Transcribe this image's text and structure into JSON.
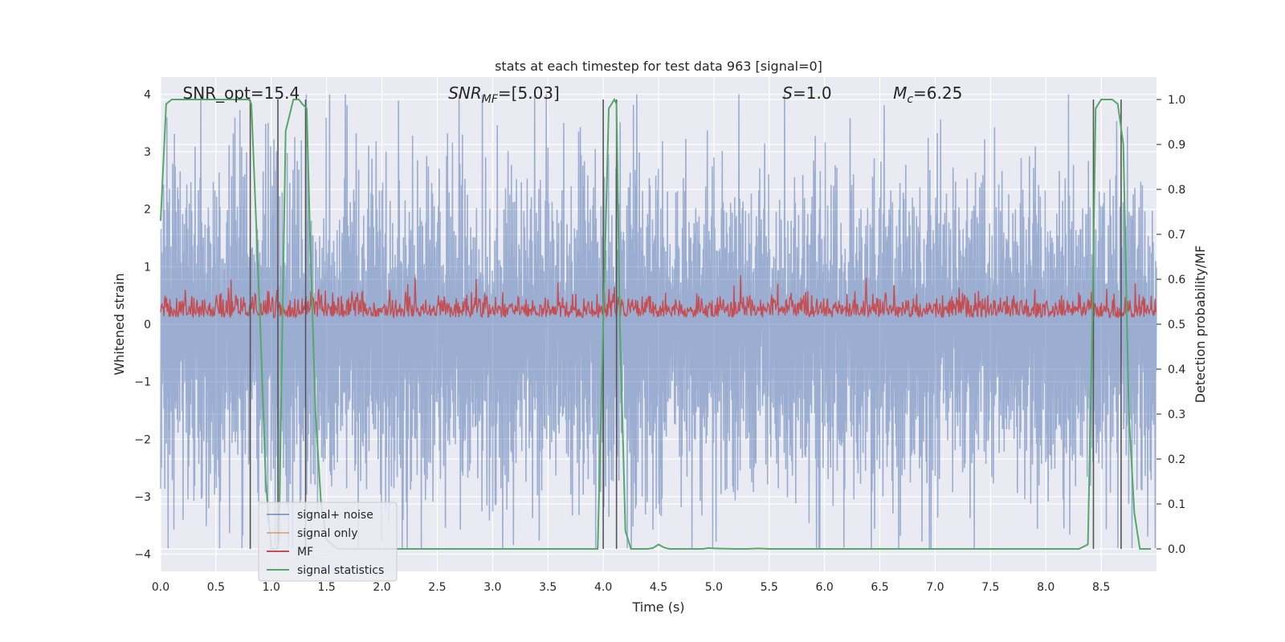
{
  "chart_data": {
    "type": "line",
    "title": "stats at each timestep for test data 963 [signal=0]",
    "xlabel": "Time (s)",
    "ylabel": "Whitened strain",
    "y2label": "Detection probability/MF",
    "xlim": [
      0.0,
      9.0
    ],
    "ylim": [
      -4.3,
      4.3
    ],
    "y2lim": [
      -0.05,
      1.05
    ],
    "x_ticks": [
      0.0,
      0.5,
      1.0,
      1.5,
      2.0,
      2.5,
      3.0,
      3.5,
      4.0,
      4.5,
      5.0,
      5.5,
      6.0,
      6.5,
      7.0,
      7.5,
      8.0,
      8.5
    ],
    "x_tick_labels": [
      "0.0",
      "0.5",
      "1.0",
      "1.5",
      "2.0",
      "2.5",
      "3.0",
      "3.5",
      "4.0",
      "4.5",
      "5.0",
      "5.5",
      "6.0",
      "6.5",
      "7.0",
      "7.5",
      "8.0",
      "8.5"
    ],
    "y_ticks": [
      4,
      3,
      2,
      1,
      0,
      -1,
      -2,
      -3,
      -4
    ],
    "y_tick_labels": [
      "4",
      "3",
      "2",
      "1",
      "0",
      "−1",
      "−2",
      "−3",
      "−4"
    ],
    "y2_ticks": [
      1.0,
      0.9,
      0.8,
      0.7,
      0.6,
      0.5,
      0.4,
      0.3,
      0.2,
      0.1,
      0.0
    ],
    "y2_tick_labels": [
      "1.0",
      "0.9",
      "0.8",
      "0.7",
      "0.6",
      "0.5",
      "0.4",
      "0.3",
      "0.2",
      "0.1",
      "0.0"
    ],
    "grid": true,
    "legend_placement": "lower-left",
    "colors": {
      "plot_bg": "#eaeaf2",
      "grid": "#ffffff",
      "noise": "#4c72b0",
      "signal_only": "#dd8452",
      "mf": "#c44e52",
      "stats": "#55a868",
      "vlines": "#555555"
    },
    "series": [
      {
        "name": "signal+ noise",
        "noise_amplitude": 1.0,
        "range": [
          -4.0,
          4.0
        ]
      },
      {
        "name": "signal only",
        "values": []
      },
      {
        "name": "MF",
        "baseline": 0.25,
        "range": [
          0.0,
          1.0
        ]
      },
      {
        "name": "signal statistics",
        "axis": "right",
        "x": [
          0.0,
          0.05,
          0.1,
          0.2,
          0.3,
          0.4,
          0.5,
          0.6,
          0.7,
          0.8,
          0.82,
          0.9,
          0.95,
          1.0,
          1.05,
          1.07,
          1.1,
          1.13,
          1.2,
          1.25,
          1.28,
          1.32,
          1.35,
          1.4,
          1.45,
          1.5,
          1.6,
          2.0,
          3.0,
          3.5,
          3.9,
          3.95,
          4.0,
          4.05,
          4.1,
          4.12,
          4.15,
          4.2,
          4.25,
          4.3,
          4.4,
          4.45,
          4.5,
          4.55,
          4.6,
          4.8,
          4.9,
          4.95,
          5.0,
          5.2,
          5.3,
          5.4,
          5.5,
          6.0,
          7.0,
          8.0,
          8.3,
          8.38,
          8.42,
          8.45,
          8.5,
          8.6,
          8.65,
          8.7,
          8.75,
          8.8,
          8.85,
          8.95
        ],
        "values": [
          0.73,
          0.99,
          1.0,
          1.0,
          1.0,
          1.0,
          1.0,
          1.0,
          1.0,
          1.0,
          0.99,
          0.5,
          0.15,
          0.0,
          0.0,
          0.02,
          0.5,
          0.93,
          1.0,
          1.0,
          0.99,
          0.98,
          0.7,
          0.3,
          0.1,
          0.02,
          0.0,
          0.0,
          0.0,
          0.0,
          0.0,
          0.0,
          0.5,
          0.98,
          1.0,
          0.99,
          0.5,
          0.04,
          0.0,
          0.0,
          0.0,
          0.002,
          0.01,
          0.003,
          0.0,
          0.0,
          0.0,
          0.002,
          0.001,
          0.0,
          0.0,
          0.001,
          0.0,
          0.0,
          0.0,
          0.0,
          0.0,
          0.01,
          0.5,
          0.98,
          1.0,
          1.0,
          0.99,
          0.9,
          0.3,
          0.08,
          0.0,
          0.0
        ]
      }
    ],
    "vlines_x": [
      0.81,
      1.06,
      1.31,
      4.0,
      4.12,
      8.43,
      8.68
    ],
    "annotations": [
      {
        "text": "SNR_opt=15.4",
        "x": 0.2
      },
      {
        "text_parts": [
          "SNR",
          "MF",
          "=[5.03]"
        ],
        "x": 2.6
      },
      {
        "text_parts": [
          "S",
          "=1.0"
        ],
        "x": 5.62
      },
      {
        "text_parts": [
          "M",
          "c",
          "=6.25"
        ],
        "x": 6.62
      }
    ]
  }
}
